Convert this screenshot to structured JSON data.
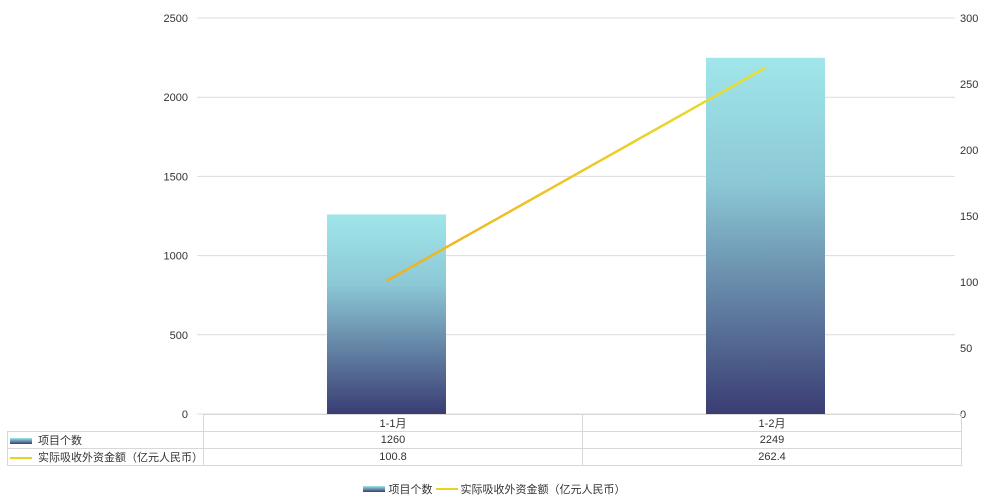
{
  "chart_data": {
    "type": "bar+line",
    "categories": [
      "1-1月",
      "1-2月"
    ],
    "series": [
      {
        "name": "项目个数",
        "type": "bar",
        "axis": "left",
        "values": [
          1260,
          2249
        ],
        "color_top": "#a0e6ea",
        "color_bottom": "#3a3d73"
      },
      {
        "name": "实际吸收外资金额（亿元人民币）",
        "type": "line",
        "axis": "right",
        "values": [
          100.8,
          262.4
        ],
        "color": "#e8d420"
      }
    ],
    "y_left": {
      "range": [
        0,
        2500
      ],
      "ticks": [
        "0",
        "500",
        "1000",
        "1500",
        "2000",
        "2500"
      ]
    },
    "y_right": {
      "range": [
        0,
        300
      ],
      "ticks": [
        "0",
        "50",
        "100",
        "150",
        "200",
        "250",
        "300"
      ]
    },
    "grid": true,
    "data_table": {
      "rows": [
        {
          "label": "项目个数",
          "cells": [
            "1260",
            "2249"
          ]
        },
        {
          "label": "实际吸收外资金额（亿元人民币）",
          "cells": [
            "100.8",
            "262.4"
          ]
        }
      ]
    },
    "legend_position": "bottom"
  }
}
